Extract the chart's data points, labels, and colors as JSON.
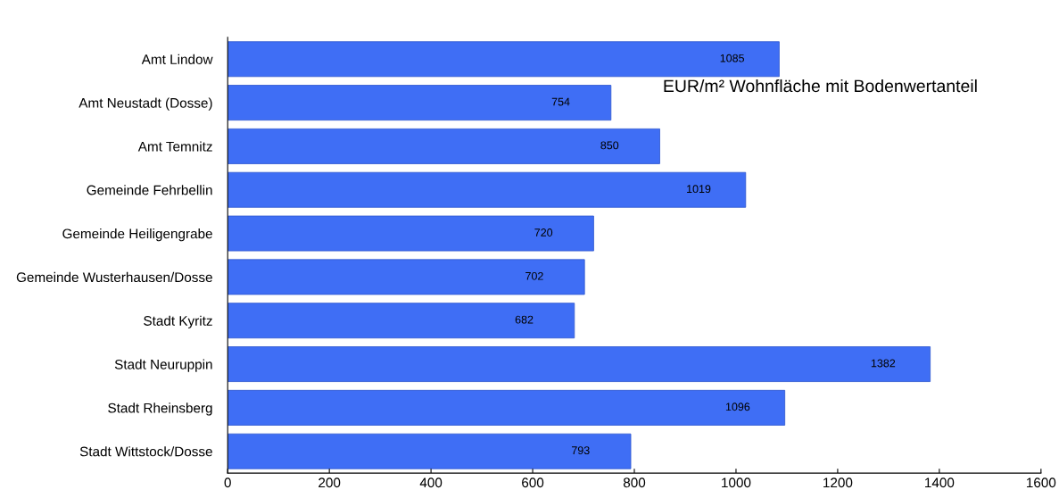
{
  "chart_data": {
    "type": "bar",
    "orientation": "horizontal",
    "title": "EUR/m² Wohnfläche mit Bodenwertanteil",
    "categories": [
      "Amt Lindow",
      "Amt Neustadt (Dosse)",
      "Amt Temnitz",
      "Gemeinde Fehrbellin",
      "Gemeinde Heiligengrabe",
      "Gemeinde Wusterhausen/Dosse",
      "Stadt Kyritz",
      "Stadt Neuruppin",
      "Stadt Rheinsberg",
      "Stadt Wittstock/Dosse"
    ],
    "values": [
      1085,
      754,
      850,
      1019,
      720,
      702,
      682,
      1382,
      1096,
      793
    ],
    "color": "#3f6ef5",
    "data_labels": true,
    "xlim": [
      0,
      1600
    ],
    "xticks": [
      0,
      200,
      400,
      600,
      800,
      1000,
      1200,
      1400,
      1600
    ],
    "grid": false,
    "legend": false
  }
}
